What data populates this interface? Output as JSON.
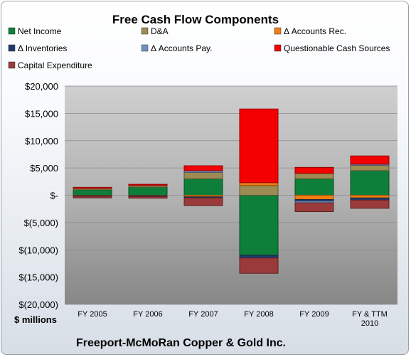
{
  "chart_data": {
    "type": "bar",
    "stacked": true,
    "title": "Free Cash Flow Components",
    "ylabel": "$ millions",
    "footer": "Freeport-McMoRan Copper & Gold Inc.",
    "categories": [
      "FY 2005",
      "FY 2006",
      "FY 2007",
      "FY 2008",
      "FY 2009",
      "FY & TTM 2010"
    ],
    "ylim": [
      -20000,
      20000
    ],
    "yticks": [
      20000,
      15000,
      10000,
      5000,
      0,
      -5000,
      -10000,
      -15000,
      -20000
    ],
    "ytick_labels": [
      "$20,000",
      "$15,000",
      "$10,000",
      "$5,000",
      "$-",
      "$(5,000)",
      "$(10,000)",
      "$(15,000)",
      "$(20,000)"
    ],
    "legend_position": "top",
    "grid": true,
    "series": [
      {
        "name": "Net Income",
        "color": "#0e7f3a",
        "values": [
          1000,
          1500,
          3000,
          -11000,
          3000,
          4500
        ]
      },
      {
        "name": "D&A",
        "color": "#9d8b53",
        "values": [
          250,
          300,
          1200,
          1800,
          1000,
          1000
        ]
      },
      {
        "name": "Δ Accounts Rec.",
        "color": "#f07d10",
        "values": [
          -100,
          -100,
          -300,
          500,
          -800,
          -500
        ]
      },
      {
        "name": "Δ Inventories",
        "color": "#1f3b6e",
        "values": [
          -100,
          -150,
          -200,
          -500,
          -300,
          -400
        ]
      },
      {
        "name": "Δ Accounts Pay.",
        "color": "#6f8fc8",
        "values": [
          0,
          0,
          300,
          0,
          -300,
          200
        ]
      },
      {
        "name": "Questionable Cash Sources",
        "color": "#f40000",
        "values": [
          200,
          200,
          900,
          13500,
          1100,
          1500
        ]
      },
      {
        "name": "Capital Expenditure",
        "color": "#9b3a3a",
        "values": [
          -300,
          -300,
          -1400,
          -2800,
          -1600,
          -1500
        ]
      }
    ]
  }
}
